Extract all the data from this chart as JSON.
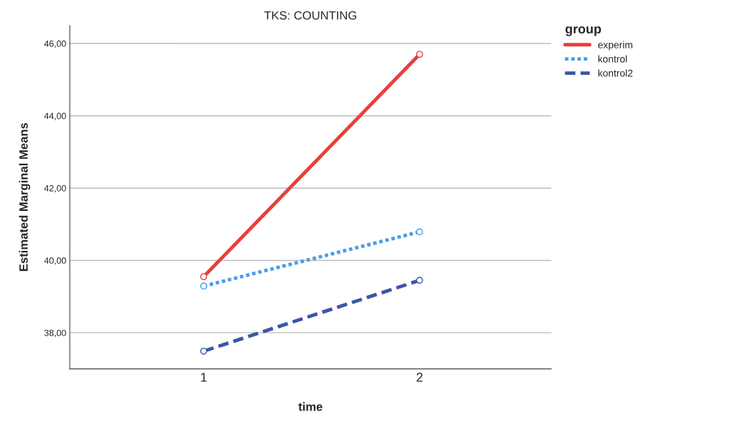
{
  "chart_data": {
    "type": "line",
    "title": "TKS: COUNTING",
    "xlabel": "time",
    "ylabel": "Estimated Marginal Means",
    "legend_title": "group",
    "categories": [
      "1",
      "2"
    ],
    "series": [
      {
        "name": "experim",
        "color": "#e8403a",
        "line_style": "solid",
        "values": [
          39.55,
          45.7
        ]
      },
      {
        "name": "kontrol",
        "color": "#4a9ee8",
        "line_style": "dotted",
        "values": [
          39.29,
          40.79
        ]
      },
      {
        "name": "kontrol2",
        "color": "#3a56a8",
        "line_style": "dashed",
        "values": [
          37.49,
          39.45
        ]
      }
    ],
    "ylim": [
      37,
      46.5
    ],
    "yticks": [
      {
        "value": 38,
        "label": "38,00"
      },
      {
        "value": 40,
        "label": "40,00"
      },
      {
        "value": 42,
        "label": "42,00"
      },
      {
        "value": 44,
        "label": "44,00"
      },
      {
        "value": 46,
        "label": "46,00"
      }
    ],
    "grid": "y",
    "legend": "right",
    "marker": "circle"
  }
}
